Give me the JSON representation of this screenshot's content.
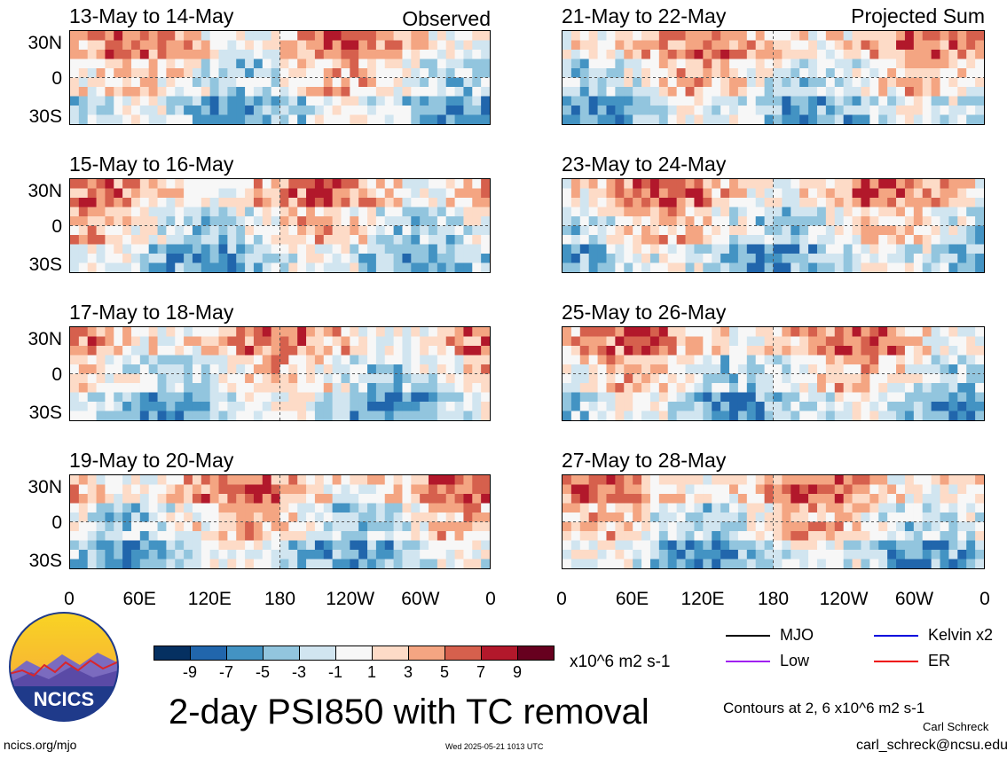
{
  "panels_left": [
    {
      "title": "13-May to 14-May",
      "tag": "Observed"
    },
    {
      "title": "15-May to 16-May",
      "tag": ""
    },
    {
      "title": "17-May to 18-May",
      "tag": ""
    },
    {
      "title": "19-May to 20-May",
      "tag": ""
    }
  ],
  "panels_right": [
    {
      "title": "21-May to 22-May",
      "tag": "Projected Sum"
    },
    {
      "title": "23-May to 24-May",
      "tag": ""
    },
    {
      "title": "25-May to 26-May",
      "tag": ""
    },
    {
      "title": "27-May to 28-May",
      "tag": ""
    }
  ],
  "lat_labels": [
    "30N",
    "0",
    "30S"
  ],
  "lon_labels": [
    "0",
    "60E",
    "120E",
    "180",
    "120W",
    "60W",
    "0"
  ],
  "colorbar": {
    "ticks": [
      "-9",
      "-7",
      "-5",
      "-3",
      "-1",
      "1",
      "3",
      "5",
      "7",
      "9"
    ],
    "colors": [
      "#053061",
      "#2166ac",
      "#4393c3",
      "#92c5de",
      "#d1e5f0",
      "#f7f7f7",
      "#fddbc7",
      "#f4a582",
      "#d6604d",
      "#b2182b",
      "#67001f"
    ],
    "units": "x10^6 m2 s-1"
  },
  "legend": {
    "mjo": {
      "label": "MJO",
      "color": "#000000"
    },
    "kelvin": {
      "label": "Kelvin x2",
      "color": "#0000dd"
    },
    "low": {
      "label": "Low",
      "color": "#a020f0"
    },
    "er": {
      "label": "ER",
      "color": "#ee0000"
    }
  },
  "title": "2-day PSI850 with TC removal",
  "contours_note": "Contours at 2, 6 x10^6 m2 s-1",
  "author": "Carl Schreck",
  "email": "carl_schreck@ncsu.edu",
  "site": "ncics.org/mjo",
  "timestamp": "Wed 2025-05-21 1013 UTC",
  "logo_text": "NCICS"
}
